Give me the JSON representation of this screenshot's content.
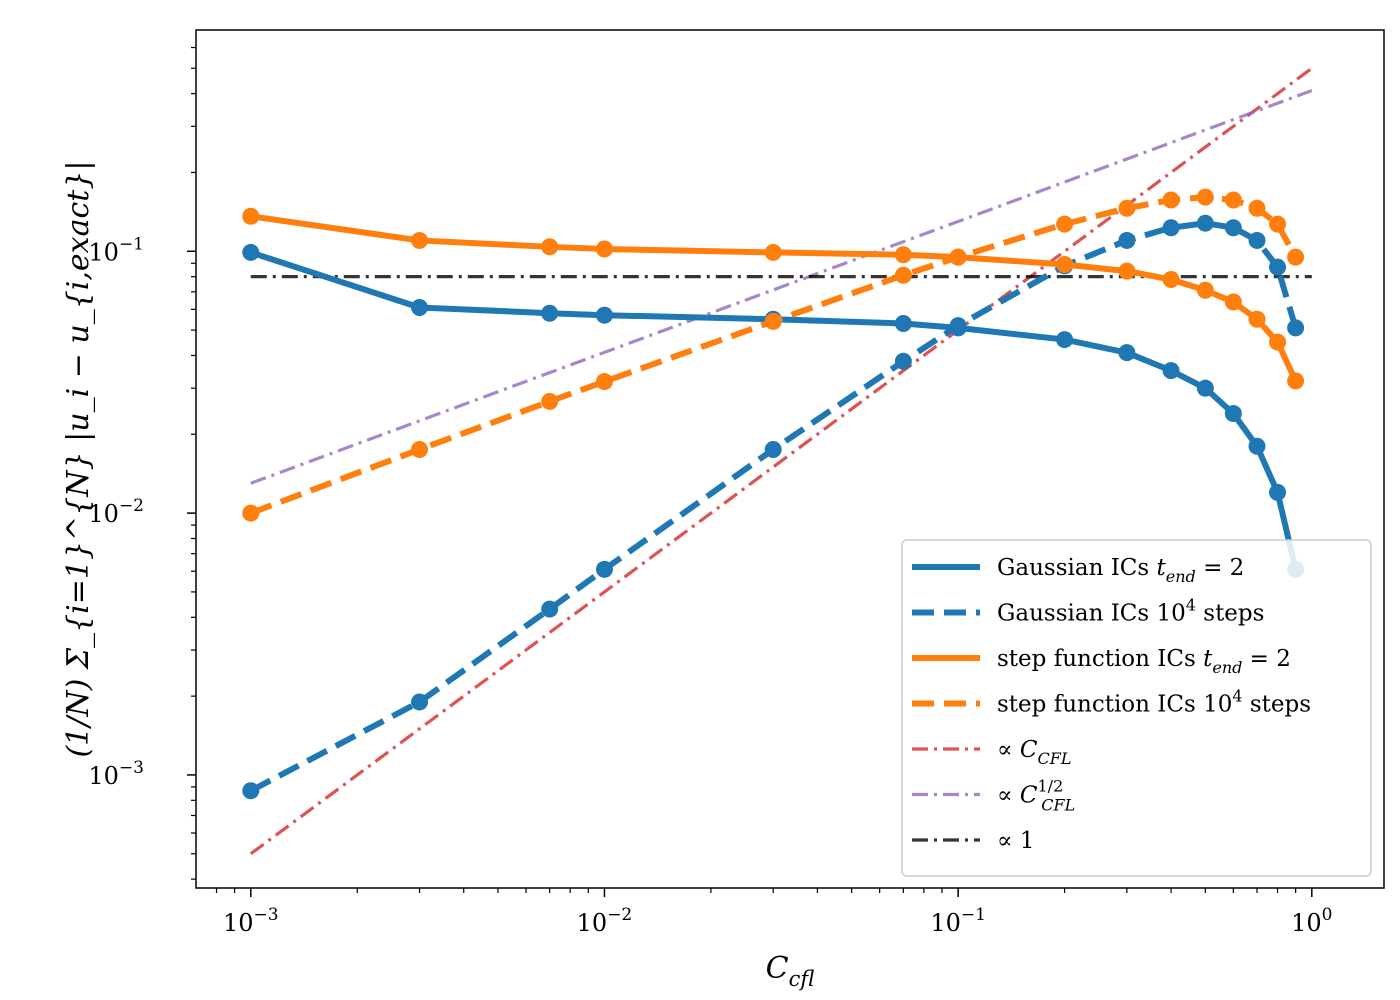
{
  "chart_data": {
    "type": "line",
    "xscale": "log",
    "yscale": "log",
    "xlim": [
      0.0007,
      1.6
    ],
    "ylim": [
      0.00037,
      0.7
    ],
    "xlabel": "C_cfl",
    "ylabel": "(1/N) Σ_{i=1}^{N} |u_i − u_{i,exact}|",
    "x_ticks": [
      {
        "value": 0.001,
        "base": "10",
        "exp": "−3"
      },
      {
        "value": 0.01,
        "base": "10",
        "exp": "−2"
      },
      {
        "value": 0.1,
        "base": "10",
        "exp": "−1"
      },
      {
        "value": 1,
        "base": "10",
        "exp": "0"
      }
    ],
    "y_ticks": [
      {
        "value": 0.001,
        "base": "10",
        "exp": "−3"
      },
      {
        "value": 0.01,
        "base": "10",
        "exp": "−2"
      },
      {
        "value": 0.1,
        "base": "10",
        "exp": "−1"
      }
    ],
    "legend_position": "lower-right",
    "series": [
      {
        "name": "Gaussian ICs t_end = 2",
        "legend_parts": [
          "Gaussian ICs ",
          "t",
          "end",
          " = 2"
        ],
        "color": "#1f77b4",
        "dash": "solid",
        "markers": true,
        "x": [
          0.001,
          0.003,
          0.007,
          0.01,
          0.03,
          0.07,
          0.1,
          0.2,
          0.3,
          0.4,
          0.5,
          0.6,
          0.7,
          0.8,
          0.9
        ],
        "y": [
          0.099,
          0.061,
          0.058,
          0.057,
          0.055,
          0.053,
          0.051,
          0.046,
          0.041,
          0.035,
          0.03,
          0.024,
          0.018,
          0.012,
          0.0061
        ]
      },
      {
        "name": "Gaussian ICs 10^4 steps",
        "legend_parts": [
          "Gaussian ICs 10",
          "4",
          " steps"
        ],
        "color": "#1f77b4",
        "dash": "dashed",
        "markers": true,
        "x": [
          0.001,
          0.003,
          0.007,
          0.01,
          0.03,
          0.07,
          0.1,
          0.2,
          0.3,
          0.4,
          0.5,
          0.6,
          0.7,
          0.8,
          0.9
        ],
        "y": [
          0.00087,
          0.0019,
          0.0043,
          0.0061,
          0.0175,
          0.038,
          0.052,
          0.088,
          0.11,
          0.123,
          0.128,
          0.123,
          0.11,
          0.087,
          0.051
        ]
      },
      {
        "name": "step function ICs t_end = 2",
        "legend_parts": [
          "step function ICs ",
          "t",
          "end",
          " = 2"
        ],
        "color": "#ff7f0e",
        "dash": "solid",
        "markers": true,
        "x": [
          0.001,
          0.003,
          0.007,
          0.01,
          0.03,
          0.07,
          0.1,
          0.2,
          0.3,
          0.4,
          0.5,
          0.6,
          0.7,
          0.8,
          0.9
        ],
        "y": [
          0.136,
          0.11,
          0.104,
          0.102,
          0.099,
          0.097,
          0.095,
          0.089,
          0.084,
          0.078,
          0.071,
          0.064,
          0.055,
          0.045,
          0.032
        ]
      },
      {
        "name": "step function ICs 10^4 steps",
        "legend_parts": [
          "step function ICs 10",
          "4",
          " steps"
        ],
        "color": "#ff7f0e",
        "dash": "dashed",
        "markers": true,
        "x": [
          0.001,
          0.003,
          0.007,
          0.01,
          0.03,
          0.07,
          0.1,
          0.2,
          0.3,
          0.4,
          0.5,
          0.6,
          0.7,
          0.8,
          0.9
        ],
        "y": [
          0.01,
          0.0175,
          0.0267,
          0.0318,
          0.054,
          0.081,
          0.095,
          0.127,
          0.146,
          0.157,
          0.161,
          0.157,
          0.146,
          0.127,
          0.095
        ]
      },
      {
        "name": "∝ C_CFL",
        "legend_parts": [
          "∝ ",
          "C",
          "CFL",
          ""
        ],
        "color": "#d62728",
        "dash": "dashdot",
        "markers": false,
        "alpha": 0.8,
        "x": [
          0.001,
          1.0
        ],
        "y": [
          0.0005,
          0.5
        ]
      },
      {
        "name": "∝ C_CFL^1/2",
        "legend_parts": [
          "∝ ",
          "C",
          "CFL",
          "1/2"
        ],
        "color": "#9467bd",
        "dash": "dashdot",
        "markers": false,
        "alpha": 0.8,
        "x": [
          0.001,
          1.0
        ],
        "y": [
          0.013,
          0.411
        ]
      },
      {
        "name": "∝ 1",
        "legend_parts": [
          "∝ 1"
        ],
        "color": "#000000",
        "dash": "dashdot",
        "markers": false,
        "alpha": 0.8,
        "x": [
          0.001,
          1.0
        ],
        "y": [
          0.08,
          0.08
        ]
      }
    ]
  }
}
